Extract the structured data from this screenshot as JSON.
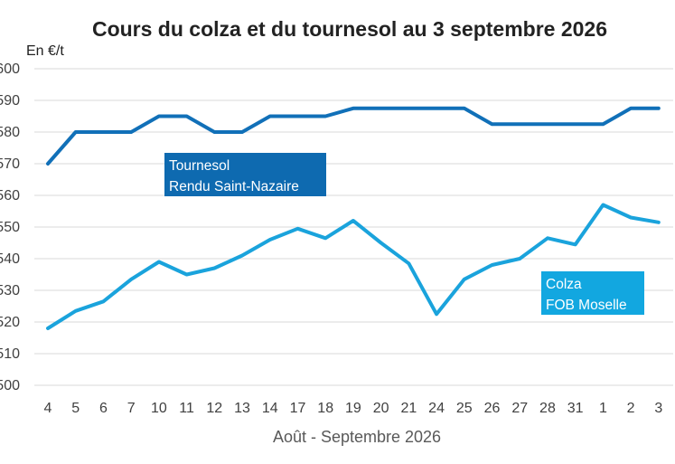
{
  "chart_data": {
    "type": "line",
    "title": "Cours du colza et du tournesol au 3 septembre 2026",
    "ylabel": "En €/t",
    "xlabel": "Août - Septembre 2026",
    "ylim": [
      500,
      600
    ],
    "yticks": [
      500,
      510,
      520,
      530,
      540,
      550,
      560,
      570,
      580,
      590,
      600
    ],
    "ytick_labels": [
      "500",
      "510",
      "520",
      "530",
      "540",
      "550",
      "560",
      "570",
      "580",
      "590",
      "600"
    ],
    "grid": true,
    "categories": [
      "4",
      "5",
      "6",
      "7",
      "10",
      "11",
      "12",
      "13",
      "14",
      "17",
      "18",
      "19",
      "20",
      "21",
      "24",
      "25",
      "26",
      "27",
      "28",
      "31",
      "1",
      "2",
      "3"
    ],
    "series": [
      {
        "name_lines": [
          "Tournesol",
          "Rendu Saint-Nazaire"
        ],
        "color": "#1170b8",
        "label_bg": "#0e6ab0",
        "values": [
          570,
          580,
          580,
          580,
          585,
          585,
          580,
          580,
          585,
          585,
          585,
          587.5,
          587.5,
          587.5,
          587.5,
          587.5,
          582.5,
          582.5,
          582.5,
          582.5,
          582.5,
          587.5,
          587.5
        ]
      },
      {
        "name_lines": [
          "Colza",
          "FOB Moselle"
        ],
        "color": "#1aa3dc",
        "label_bg": "#12a7e0",
        "values": [
          518,
          523.5,
          526.5,
          533.5,
          539,
          535,
          537,
          541,
          546,
          549.5,
          546.5,
          552,
          545,
          538.5,
          522.5,
          533.5,
          538,
          540,
          546.5,
          544.5,
          557,
          553,
          551.5
        ]
      }
    ]
  }
}
